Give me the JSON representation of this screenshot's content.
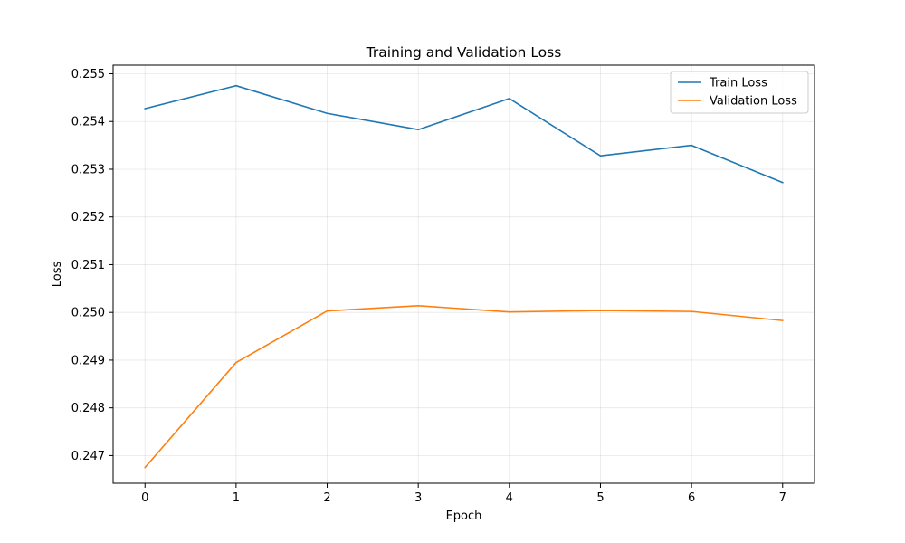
{
  "chart_data": {
    "type": "line",
    "title": "Training and Validation Loss",
    "xlabel": "Epoch",
    "ylabel": "Loss",
    "x": [
      0,
      1,
      2,
      3,
      4,
      5,
      6,
      7
    ],
    "xlim": [
      -0.35,
      7.35
    ],
    "ylim": [
      0.24642,
      0.25518
    ],
    "xticks": [
      "0",
      "1",
      "2",
      "3",
      "4",
      "5",
      "6",
      "7"
    ],
    "yticks": [
      "0.247",
      "0.248",
      "0.249",
      "0.250",
      "0.251",
      "0.252",
      "0.253",
      "0.254",
      "0.255"
    ],
    "grid": true,
    "legend_position": "top-right",
    "series": [
      {
        "name": "Train Loss",
        "color": "#1f77b4",
        "values": [
          0.25427,
          0.25475,
          0.25417,
          0.25383,
          0.25448,
          0.25328,
          0.2535,
          0.25272
        ]
      },
      {
        "name": "Validation Loss",
        "color": "#ff7f0e",
        "values": [
          0.24675,
          0.24895,
          0.25003,
          0.25014,
          0.25001,
          0.25004,
          0.25002,
          0.24983
        ]
      }
    ]
  }
}
